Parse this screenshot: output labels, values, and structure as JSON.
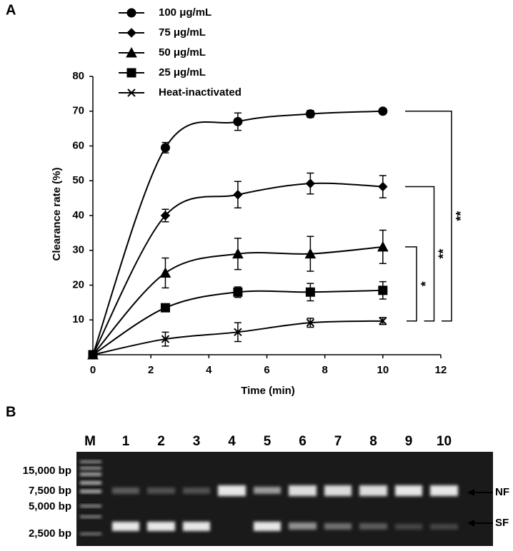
{
  "chart_data": {
    "type": "line",
    "panel_label": "A",
    "x_label": "Time (min)",
    "y_label": "Clearance rate (%)",
    "x": [
      0,
      2.5,
      5,
      7.5,
      10
    ],
    "series": [
      {
        "name": "100 μg/mL",
        "color": "#000000",
        "marker": "circle",
        "values": [
          0,
          59.5,
          67,
          69.2,
          70
        ],
        "errors": [
          0,
          1.5,
          2.5,
          1,
          0
        ]
      },
      {
        "name": "75 μg/mL",
        "color": "#000000",
        "marker": "diamond",
        "values": [
          0,
          40,
          46,
          49.2,
          48.3
        ],
        "errors": [
          0,
          1.8,
          3.8,
          3,
          3.2
        ]
      },
      {
        "name": "50 μg/mL",
        "color": "#000000",
        "marker": "triangle",
        "values": [
          0,
          23.5,
          29,
          29,
          31
        ],
        "errors": [
          0,
          4.3,
          4.5,
          5,
          4.8
        ]
      },
      {
        "name": "25 μg/mL",
        "color": "#000000",
        "marker": "square",
        "values": [
          0,
          13.5,
          18,
          18,
          18.5
        ],
        "errors": [
          0,
          0,
          1.5,
          2.5,
          2.5
        ]
      },
      {
        "name": "Heat-inactivated",
        "color": "#000000",
        "marker": "x",
        "values": [
          0,
          4.5,
          6.5,
          9.2,
          9.7
        ],
        "errors": [
          0,
          2,
          2.7,
          1.3,
          1
        ]
      }
    ],
    "annotations": [
      "**",
      "**",
      "*"
    ],
    "xlim": [
      0,
      12
    ],
    "xticks": [
      0,
      2,
      4,
      6,
      8,
      10,
      12
    ],
    "ylim": [
      0,
      80
    ],
    "yticks": [
      10,
      20,
      30,
      40,
      50,
      60,
      70,
      80
    ],
    "legend": "top-left",
    "grid": false
  },
  "gel": {
    "panel_label": "B",
    "lanes": [
      "M",
      "1",
      "2",
      "3",
      "4",
      "5",
      "6",
      "7",
      "8",
      "9",
      "10"
    ],
    "markers": [
      "15,000 bp",
      "7,500 bp",
      "5,000 bp",
      "2,500 bp"
    ],
    "bands": [
      "NF",
      "SF"
    ]
  }
}
